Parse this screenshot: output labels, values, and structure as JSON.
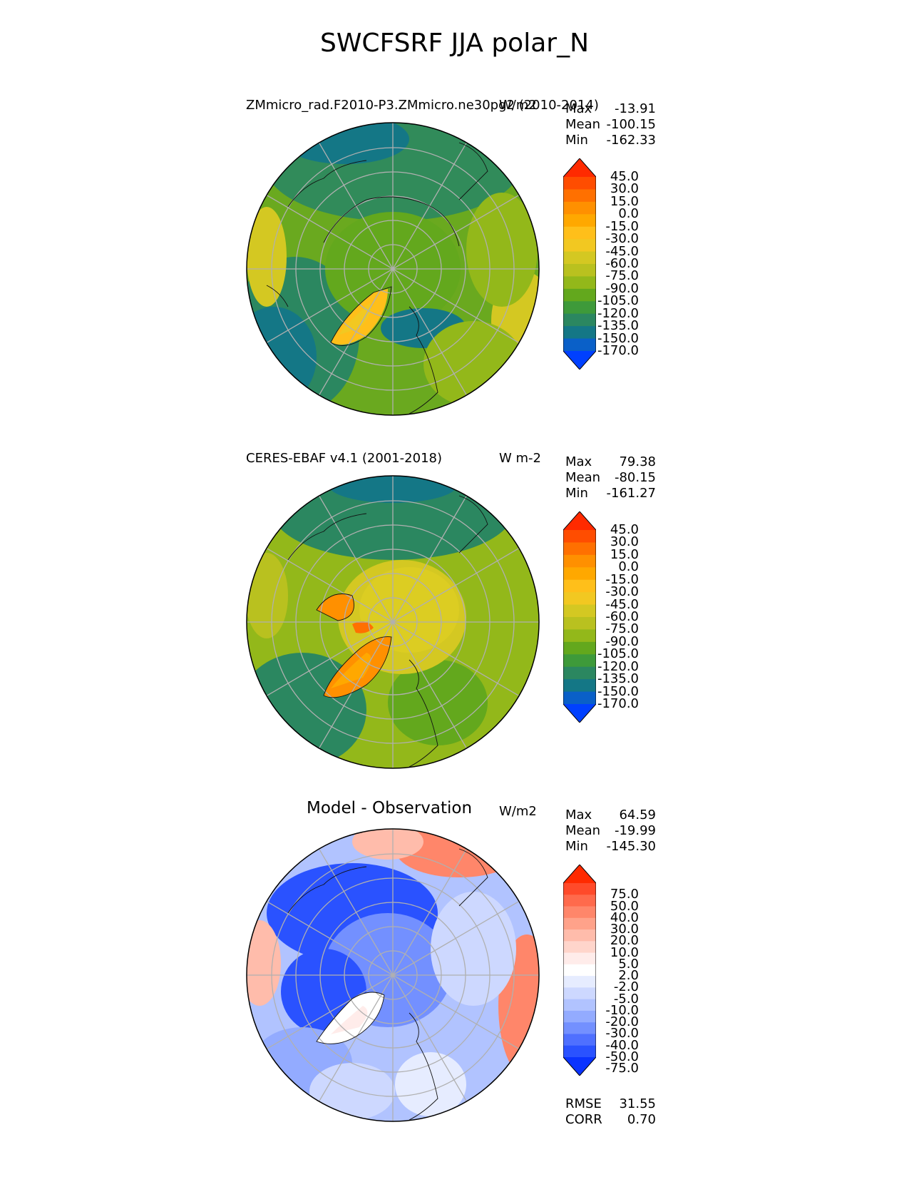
{
  "title": "SWCFSRF JJA polar_N",
  "panels": [
    {
      "left_title": "ZMmicro_rad.F2010-P3.ZMmicro.ne30pg2 (2010-2014)",
      "right_title": "W/m2",
      "stats": {
        "max_label": "Max",
        "max": "-13.91",
        "mean_label": "Mean",
        "mean": "-100.15",
        "min_label": "Min",
        "min": "-162.33"
      },
      "colorbar": {
        "levels": [
          "45.0",
          "30.0",
          "15.0",
          "0.0",
          "-15.0",
          "-30.0",
          "-45.0",
          "-60.0",
          "-75.0",
          "-90.0",
          "-105.0",
          "-120.0",
          "-135.0",
          "-150.0",
          "-170.0"
        ],
        "colors": [
          "#ff2a00",
          "#ff4d00",
          "#ff7000",
          "#ff9000",
          "#ffa800",
          "#ffbf1a",
          "#f2c821",
          "#d4c822",
          "#b9c11f",
          "#93b81a",
          "#63a81d",
          "#3e9a3a",
          "#2b8760",
          "#147786",
          "#0a60c8",
          "#0040ff"
        ]
      }
    },
    {
      "left_title": "CERES-EBAF v4.1 (2001-2018)",
      "right_title": "W m-2",
      "stats": {
        "max_label": "Max",
        "max": "79.38",
        "mean_label": "Mean",
        "mean": "-80.15",
        "min_label": "Min",
        "min": "-161.27"
      },
      "colorbar": {
        "levels": [
          "45.0",
          "30.0",
          "15.0",
          "0.0",
          "-15.0",
          "-30.0",
          "-45.0",
          "-60.0",
          "-75.0",
          "-90.0",
          "-105.0",
          "-120.0",
          "-135.0",
          "-150.0",
          "-170.0"
        ],
        "colors": [
          "#ff2a00",
          "#ff4d00",
          "#ff7000",
          "#ff9000",
          "#ffa800",
          "#ffbf1a",
          "#f2c821",
          "#d4c822",
          "#b9c11f",
          "#93b81a",
          "#63a81d",
          "#3e9a3a",
          "#2b8760",
          "#147786",
          "#0a60c8",
          "#0040ff"
        ]
      }
    },
    {
      "left_title": "Model - Observation",
      "right_title": "W/m2",
      "stats": {
        "max_label": "Max",
        "max": "64.59",
        "mean_label": "Mean",
        "mean": "-19.99",
        "min_label": "Min",
        "min": "-145.30"
      },
      "colorbar": {
        "levels": [
          "75.0",
          "50.0",
          "40.0",
          "30.0",
          "20.0",
          "10.0",
          "5.0",
          "2.0",
          "-2.0",
          "-5.0",
          "-10.0",
          "-20.0",
          "-30.0",
          "-40.0",
          "-50.0",
          "-75.0"
        ],
        "colors": [
          "#ff2a00",
          "#ff4a2a",
          "#ff6a4c",
          "#ff866a",
          "#ffa28a",
          "#ffbcab",
          "#ffd5cb",
          "#ffecea",
          "#ffffff",
          "#e6ecff",
          "#cdd8ff",
          "#b1c3ff",
          "#93abff",
          "#7390ff",
          "#4f70ff",
          "#2a52ff",
          "#0a33ff"
        ]
      },
      "footer": {
        "rmse_label": "RMSE",
        "rmse": "31.55",
        "corr_label": "CORR",
        "corr": "0.70"
      }
    }
  ]
}
